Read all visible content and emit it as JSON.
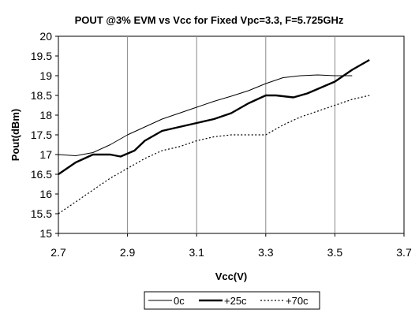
{
  "chart_data": {
    "type": "line",
    "title": "POUT @3% EVM vs Vcc for Fixed Vpc=3.3, F=5.725GHz",
    "xlabel": "Vcc(V)",
    "ylabel": "Pout(dBm)",
    "xlim": [
      2.7,
      3.7
    ],
    "ylim": [
      15,
      20
    ],
    "x_ticks": [
      "2.7",
      "2.9",
      "3.1",
      "3.3",
      "3.5",
      "3.7"
    ],
    "y_ticks": [
      "15",
      "15.5",
      "16",
      "16.5",
      "17",
      "17.5",
      "18",
      "18.5",
      "19",
      "19.5",
      "20"
    ],
    "grid": "vertical",
    "legend_position": "bottom",
    "series": [
      {
        "name": "0c",
        "style": "thin",
        "x": [
          2.7,
          2.75,
          2.8,
          2.85,
          2.9,
          2.95,
          3.0,
          3.05,
          3.1,
          3.15,
          3.2,
          3.25,
          3.3,
          3.35,
          3.4,
          3.45,
          3.5,
          3.55
        ],
        "y": [
          17.0,
          16.97,
          17.05,
          17.25,
          17.5,
          17.7,
          17.9,
          18.05,
          18.2,
          18.35,
          18.48,
          18.62,
          18.8,
          18.95,
          19.0,
          19.02,
          19.0,
          19.0
        ]
      },
      {
        "name": "+25c",
        "style": "thick",
        "x": [
          2.7,
          2.75,
          2.8,
          2.85,
          2.88,
          2.92,
          2.95,
          3.0,
          3.05,
          3.1,
          3.15,
          3.2,
          3.25,
          3.3,
          3.33,
          3.38,
          3.42,
          3.5,
          3.55,
          3.6
        ],
        "y": [
          16.5,
          16.8,
          17.0,
          17.0,
          16.95,
          17.1,
          17.35,
          17.6,
          17.7,
          17.8,
          17.9,
          18.05,
          18.3,
          18.5,
          18.5,
          18.45,
          18.55,
          18.85,
          19.15,
          19.4
        ]
      },
      {
        "name": "+70c",
        "style": "dotted",
        "x": [
          2.7,
          2.75,
          2.8,
          2.85,
          2.9,
          2.95,
          3.0,
          3.05,
          3.1,
          3.15,
          3.2,
          3.25,
          3.3,
          3.35,
          3.4,
          3.45,
          3.5,
          3.55,
          3.6
        ],
        "y": [
          15.5,
          15.8,
          16.1,
          16.4,
          16.65,
          16.9,
          17.1,
          17.2,
          17.35,
          17.45,
          17.5,
          17.5,
          17.5,
          17.75,
          17.95,
          18.1,
          18.25,
          18.4,
          18.5
        ]
      }
    ]
  }
}
